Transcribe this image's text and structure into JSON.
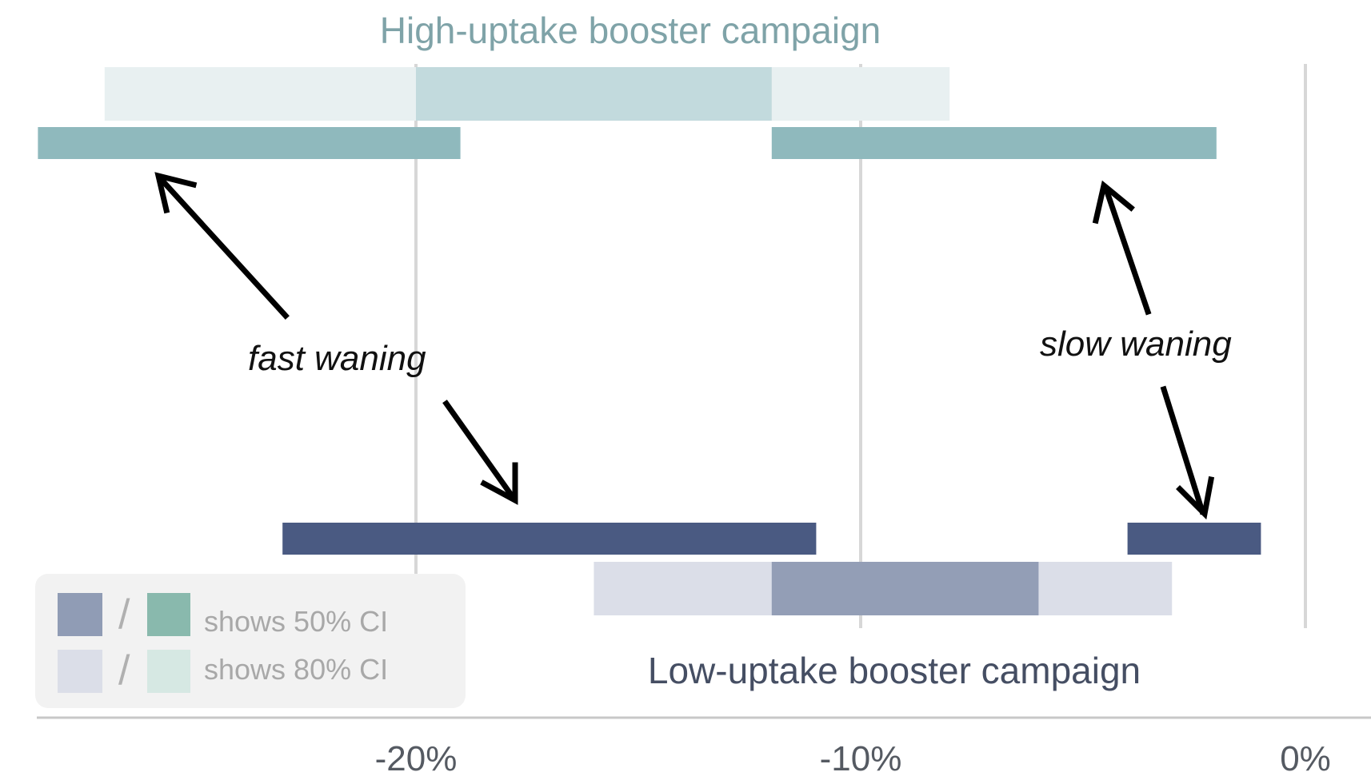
{
  "chart_data": {
    "type": "bar",
    "title": "",
    "xlabel": "",
    "ylabel": "",
    "x_axis": {
      "range": [
        -28.5,
        1.5
      ],
      "ticks": [
        {
          "value": -20,
          "label": "-20%"
        },
        {
          "value": -10,
          "label": "-10%"
        },
        {
          "value": 0,
          "label": "0%"
        }
      ],
      "grid": true
    },
    "groups": [
      {
        "key": "high",
        "label": "High-uptake booster campaign",
        "color": "#8fb9bd",
        "ci": {
          "ci80": [
            -27.0,
            -8.0
          ],
          "ci50": [
            -20.0,
            -12.0
          ]
        },
        "scenarios": [
          {
            "key": "fast",
            "range": [
              -28.5,
              -19.0
            ]
          },
          {
            "key": "slow",
            "range": [
              -12.0,
              -2.0
            ]
          }
        ]
      },
      {
        "key": "low",
        "label": "Low-uptake booster campaign",
        "color": "#4a5a82",
        "ci": {
          "ci80": [
            -16.0,
            -3.0
          ],
          "ci50": [
            -12.0,
            -6.0
          ]
        },
        "scenarios": [
          {
            "key": "fast",
            "range": [
              -23.0,
              -11.0
            ]
          },
          {
            "key": "slow",
            "range": [
              -4.0,
              -1.0
            ]
          }
        ]
      }
    ],
    "annotations": [
      {
        "key": "fast",
        "text": "fast waning"
      },
      {
        "key": "slow",
        "text": "slow waning"
      }
    ],
    "legend": {
      "placement": "bottom-left",
      "slash": "/",
      "items": [
        {
          "label": "shows 50% CI",
          "colors": [
            "#909cb5",
            "#89b9ad"
          ]
        },
        {
          "label": "shows 80% CI",
          "colors": [
            "#dbdee8",
            "#d6e8e3"
          ]
        }
      ]
    }
  }
}
